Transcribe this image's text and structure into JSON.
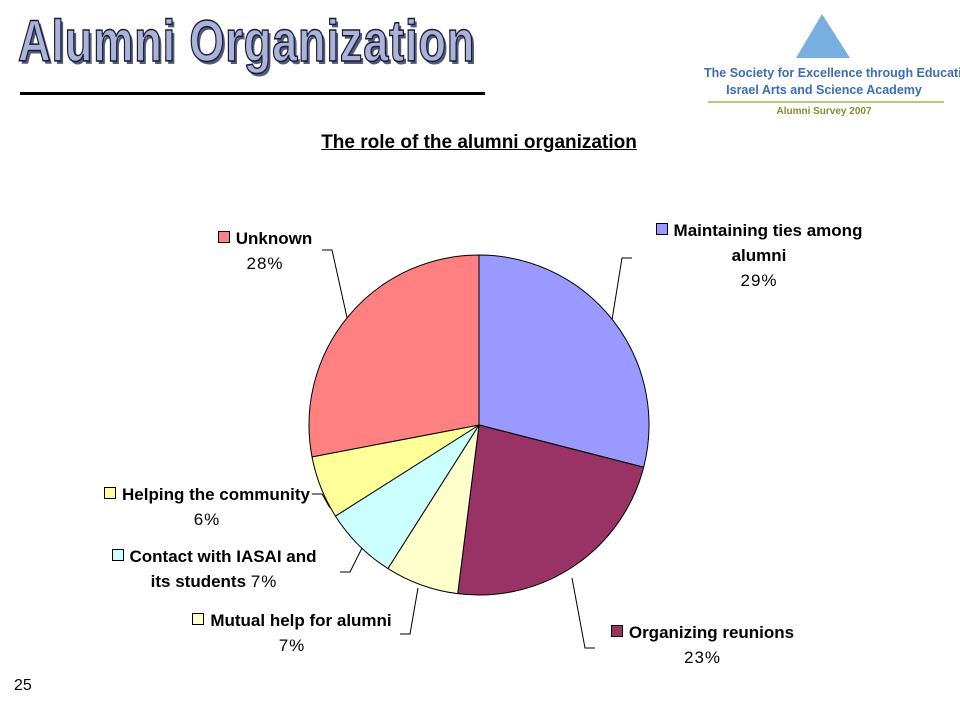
{
  "header": {
    "title": "Alumni Organization",
    "logo_line1": "The Society for Excellence through Education",
    "logo_line2": "Israel Arts and Science Academy",
    "logo_line3": "Alumni Survey 2007"
  },
  "page_number": 25,
  "chart_data": {
    "type": "pie",
    "title": "The role of the alumni organization",
    "categories": [
      "Maintaining ties among alumni",
      "Organizing reunions",
      "Mutual help for alumni",
      "Contact with IASAI and its students",
      "Helping the community",
      "Unknown"
    ],
    "values": [
      29,
      23,
      7,
      7,
      6,
      28
    ],
    "value_labels": [
      "29%",
      "23%",
      "7%",
      "7%",
      "6%",
      "28%"
    ],
    "colors": [
      "#9999ff",
      "#993366",
      "#ffffcc",
      "#ccffff",
      "#ffff99",
      "#ff8080"
    ]
  }
}
